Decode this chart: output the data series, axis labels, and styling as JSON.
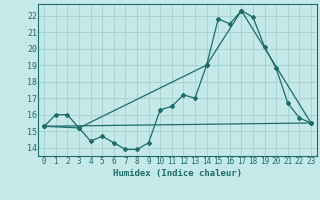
{
  "xlabel": "Humidex (Indice chaleur)",
  "bg_color": "#c5e8e8",
  "grid_color": "#a8d4d4",
  "line_color": "#1e6b6b",
  "spine_color": "#1e6b6b",
  "xlim": [
    -0.5,
    23.5
  ],
  "ylim": [
    13.5,
    22.7
  ],
  "yticks": [
    14,
    15,
    16,
    17,
    18,
    19,
    20,
    21,
    22
  ],
  "xticks": [
    0,
    1,
    2,
    3,
    4,
    5,
    6,
    7,
    8,
    9,
    10,
    11,
    12,
    13,
    14,
    15,
    16,
    17,
    18,
    19,
    20,
    21,
    22,
    23
  ],
  "line1_x": [
    0,
    1,
    2,
    3,
    4,
    5,
    6,
    7,
    8,
    9,
    10,
    11,
    12,
    13,
    14,
    15,
    16,
    17,
    18,
    19,
    20,
    21,
    22,
    23
  ],
  "line1_y": [
    15.3,
    16.0,
    16.0,
    15.2,
    14.4,
    14.7,
    14.3,
    13.9,
    13.9,
    14.3,
    16.3,
    16.5,
    17.2,
    17.0,
    19.0,
    21.8,
    21.5,
    22.3,
    21.9,
    20.1,
    18.8,
    16.7,
    15.8,
    15.5
  ],
  "line2_x": [
    0,
    3,
    14,
    17,
    23
  ],
  "line2_y": [
    15.3,
    15.2,
    19.0,
    22.3,
    15.5
  ],
  "line3_x": [
    0,
    23
  ],
  "line3_y": [
    15.3,
    15.5
  ]
}
